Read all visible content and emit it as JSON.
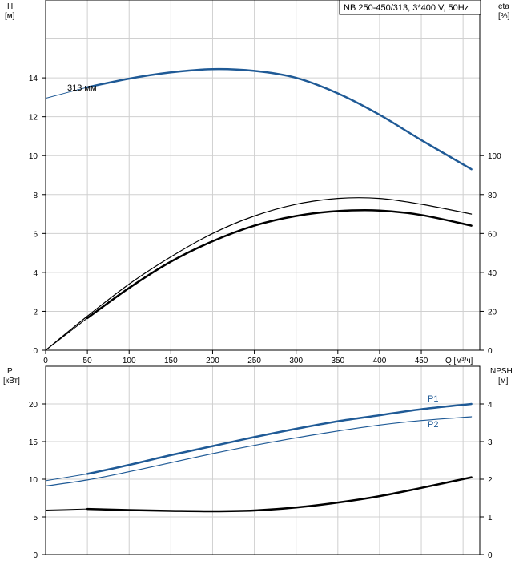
{
  "title": "NB 250-450/313, 3*400 V, 50Hz",
  "chart_data": [
    {
      "type": "line",
      "xlabel": "Q [м³/ч]",
      "xlim": [
        0,
        520
      ],
      "x_ticks": [
        "0",
        "50",
        "100",
        "150",
        "200",
        "250",
        "300",
        "350",
        "400",
        "450"
      ],
      "left_axis": {
        "label_top": "H",
        "label_unit": "[м]",
        "ylim": [
          0,
          18
        ],
        "ticks": [
          "0",
          "2",
          "4",
          "6",
          "8",
          "10",
          "12",
          "14"
        ]
      },
      "right_axis": {
        "label_top": "eta",
        "label_unit": "[%]",
        "ylim": [
          0,
          180
        ],
        "ticks": [
          "0",
          "20",
          "40",
          "60",
          "80",
          "100"
        ]
      },
      "annotation": "313 мм",
      "grid": true,
      "series": [
        {
          "key": "head",
          "axis": "left",
          "color": "#1f5a96",
          "width": 2.5,
          "points": [
            [
              50,
              13.52
            ],
            [
              100,
              13.96
            ],
            [
              150,
              14.28
            ],
            [
              200,
              14.45
            ],
            [
              250,
              14.36
            ],
            [
              300,
              14.0
            ],
            [
              350,
              13.2
            ],
            [
              400,
              12.1
            ],
            [
              450,
              10.8
            ],
            [
              510,
              9.3
            ]
          ]
        },
        {
          "key": "head_ext",
          "axis": "left",
          "color": "#1f5a96",
          "width": 1,
          "points": [
            [
              0,
              12.95
            ],
            [
              50,
              13.52
            ]
          ]
        },
        {
          "key": "eta_thin",
          "axis": "right",
          "color": "#000000",
          "width": 1.2,
          "points": [
            [
              0,
              0
            ],
            [
              50,
              17.5
            ],
            [
              100,
              34
            ],
            [
              150,
              48
            ],
            [
              200,
              60
            ],
            [
              250,
              69
            ],
            [
              300,
              75
            ],
            [
              350,
              78
            ],
            [
              400,
              78
            ],
            [
              450,
              75
            ],
            [
              510,
              70
            ]
          ]
        },
        {
          "key": "eta_thick",
          "axis": "right",
          "color": "#000000",
          "width": 2.5,
          "points": [
            [
              50,
              16.5
            ],
            [
              100,
              32
            ],
            [
              150,
              45.5
            ],
            [
              200,
              56
            ],
            [
              250,
              64
            ],
            [
              300,
              69
            ],
            [
              350,
              71.5
            ],
            [
              400,
              71.8
            ],
            [
              450,
              69.5
            ],
            [
              510,
              64
            ]
          ]
        },
        {
          "key": "eta_ext",
          "axis": "right",
          "color": "#000000",
          "width": 1,
          "points": [
            [
              0,
              0
            ],
            [
              50,
              16.5
            ]
          ]
        }
      ]
    },
    {
      "type": "line",
      "xlim": [
        0,
        520
      ],
      "left_axis": {
        "label_top": "P",
        "label_unit": "[кВт]",
        "ylim": [
          0,
          25
        ],
        "ticks": [
          "0",
          "5",
          "10",
          "15",
          "20"
        ]
      },
      "right_axis": {
        "label_top": "NPSH",
        "label_unit": "[м]",
        "ylim": [
          0,
          5
        ],
        "ticks": [
          "0",
          "1",
          "2",
          "3",
          "4"
        ]
      },
      "grid": true,
      "series": [
        {
          "key": "p1",
          "name": "P1",
          "axis": "left",
          "color": "#1f5a96",
          "width": 2.5,
          "points": [
            [
              50,
              10.7
            ],
            [
              100,
              11.9
            ],
            [
              150,
              13.2
            ],
            [
              200,
              14.4
            ],
            [
              250,
              15.6
            ],
            [
              300,
              16.7
            ],
            [
              350,
              17.7
            ],
            [
              400,
              18.5
            ],
            [
              450,
              19.3
            ],
            [
              510,
              20.0
            ]
          ]
        },
        {
          "key": "p1_ext",
          "axis": "left",
          "color": "#1f5a96",
          "width": 1,
          "points": [
            [
              0,
              9.8
            ],
            [
              50,
              10.7
            ]
          ]
        },
        {
          "key": "p2",
          "name": "P2",
          "axis": "left",
          "color": "#1f5a96",
          "width": 1.2,
          "points": [
            [
              0,
              9.1
            ],
            [
              50,
              9.9
            ],
            [
              100,
              11.0
            ],
            [
              150,
              12.2
            ],
            [
              200,
              13.4
            ],
            [
              250,
              14.5
            ],
            [
              300,
              15.5
            ],
            [
              350,
              16.4
            ],
            [
              400,
              17.2
            ],
            [
              450,
              17.8
            ],
            [
              510,
              18.3
            ]
          ]
        },
        {
          "key": "npsh",
          "axis": "right",
          "color": "#000000",
          "width": 2.5,
          "points": [
            [
              50,
              1.21
            ],
            [
              100,
              1.18
            ],
            [
              150,
              1.16
            ],
            [
              200,
              1.15
            ],
            [
              250,
              1.17
            ],
            [
              300,
              1.25
            ],
            [
              350,
              1.38
            ],
            [
              400,
              1.55
            ],
            [
              450,
              1.77
            ],
            [
              510,
              2.05
            ]
          ]
        },
        {
          "key": "npsh_ext",
          "axis": "right",
          "color": "#000000",
          "width": 1,
          "points": [
            [
              0,
              1.18
            ],
            [
              50,
              1.21
            ]
          ]
        }
      ]
    }
  ]
}
